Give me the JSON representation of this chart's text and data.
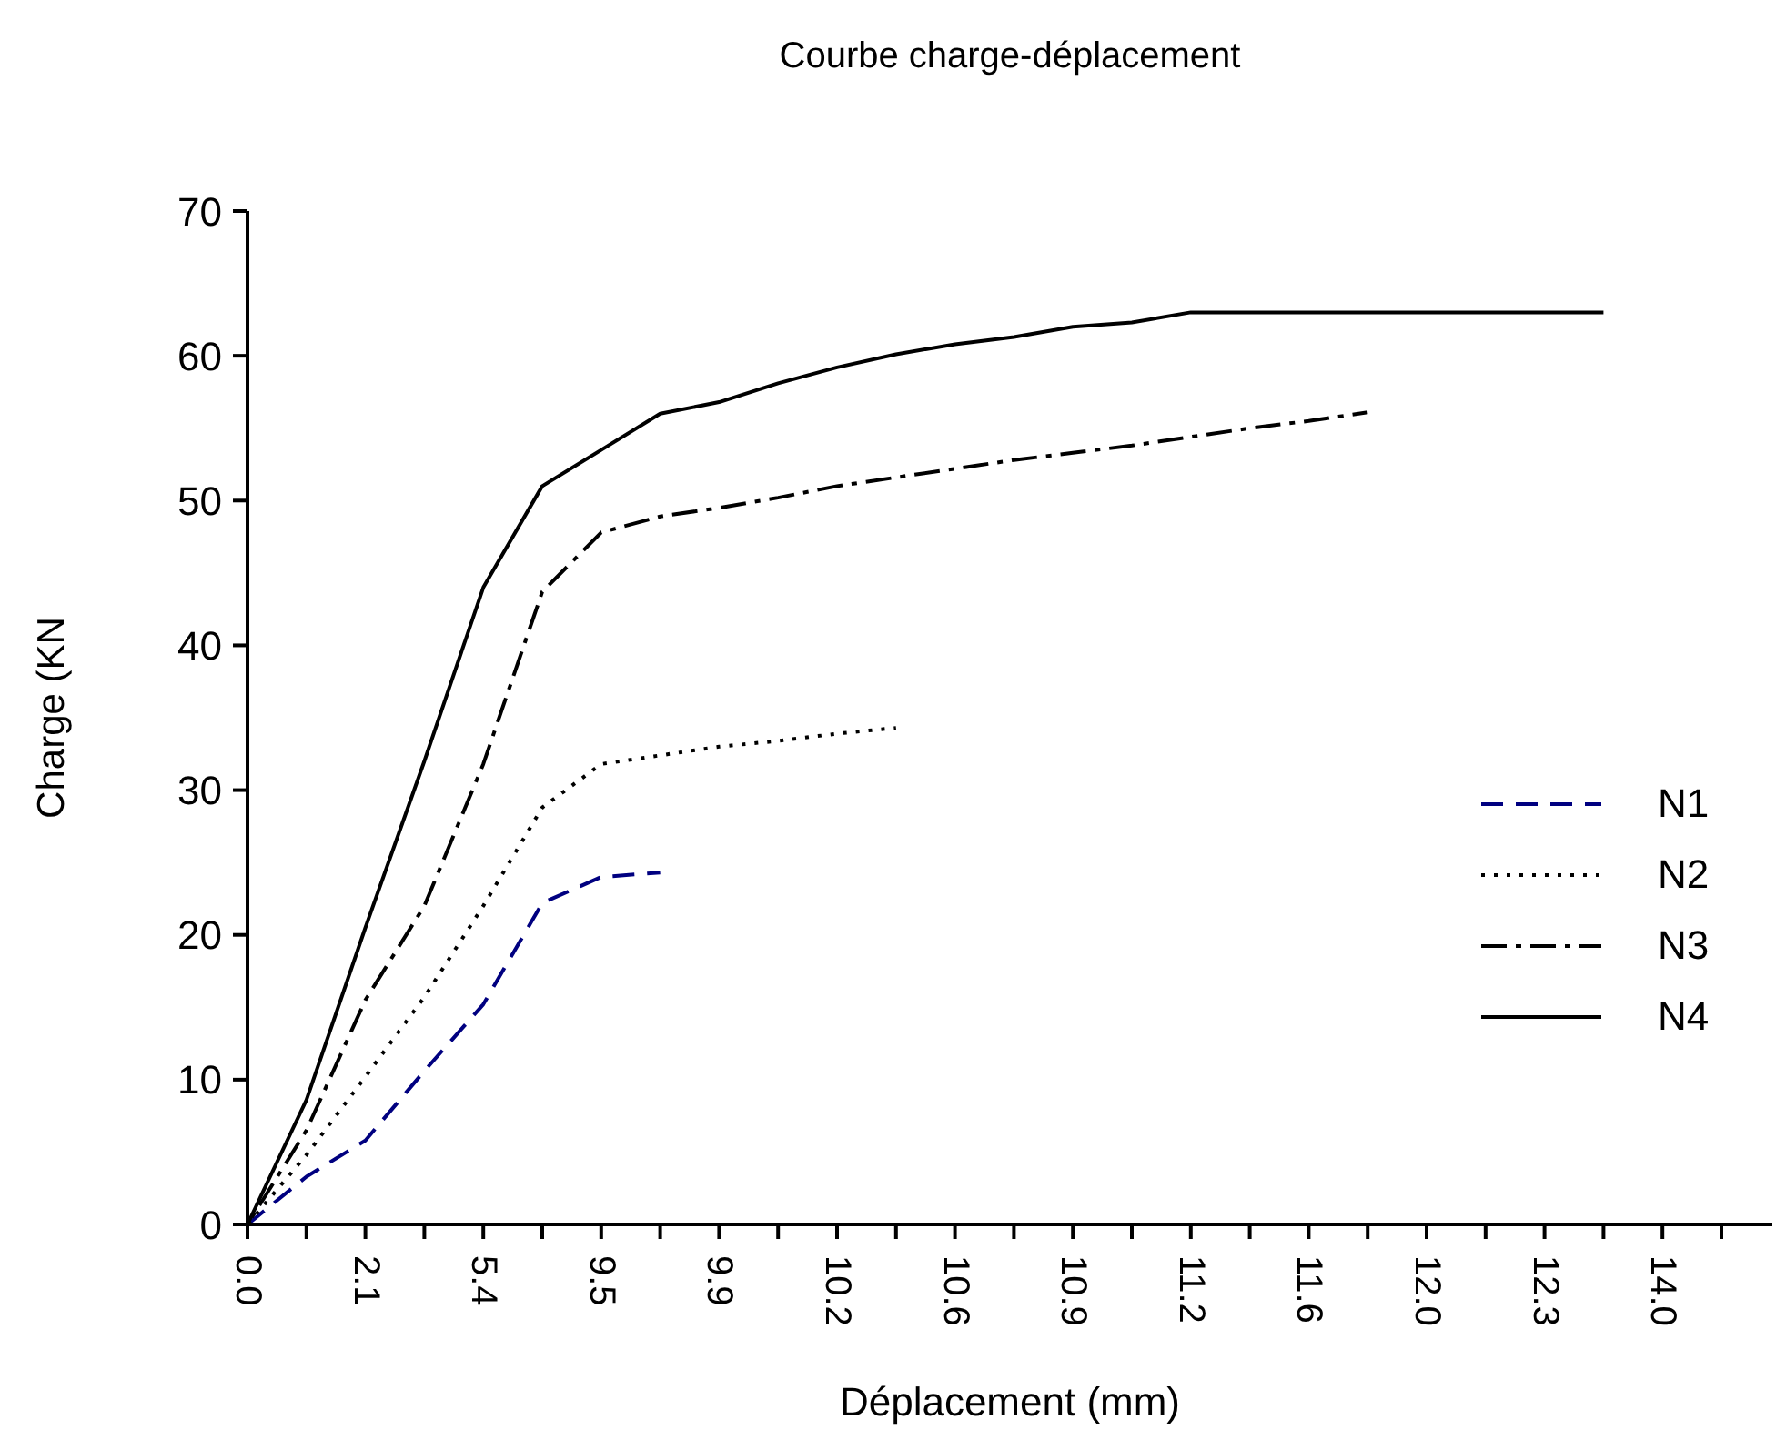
{
  "chart_data": {
    "type": "line",
    "title": "Courbe charge-déplacement",
    "xlabel": "Déplacement (mm)",
    "ylabel": "Charge (KN",
    "categories": [
      "0.0",
      null,
      "2.1",
      null,
      "5.4",
      null,
      "9.5",
      null,
      "9.9",
      null,
      "10.2",
      null,
      "10.6",
      null,
      "10.9",
      null,
      "11.2",
      null,
      "11.6",
      null,
      "12.0",
      null,
      "12.3",
      null,
      "14.0",
      null
    ],
    "series": [
      {
        "name": "N1",
        "color": "#000080",
        "line_style": "dashed",
        "values": [
          0,
          3.3,
          5.8,
          10.6,
          15.2,
          22.2,
          24.0,
          24.3,
          null,
          null,
          null,
          null,
          null,
          null,
          null,
          null,
          null,
          null,
          null,
          null,
          null,
          null,
          null,
          null,
          null,
          null
        ]
      },
      {
        "name": "N2",
        "color": "#000000",
        "line_style": "dotted",
        "values": [
          0,
          4.8,
          10.2,
          15.7,
          22,
          28.8,
          31.8,
          32.4,
          33.0,
          33.4,
          33.9,
          34.3,
          null,
          null,
          null,
          null,
          null,
          null,
          null,
          null,
          null,
          null,
          null,
          null,
          null,
          null
        ]
      },
      {
        "name": "N3",
        "color": "#000000",
        "line_style": "dashdot",
        "values": [
          0,
          6.5,
          15.5,
          22,
          31.8,
          43.7,
          47.8,
          48.9,
          49.5,
          50.2,
          51.0,
          51.6,
          52.2,
          52.8,
          53.3,
          53.8,
          54.4,
          55.0,
          55.5,
          56.1,
          null,
          null,
          null,
          null,
          null,
          null
        ]
      },
      {
        "name": "N4",
        "color": "#000000",
        "line_style": "solid",
        "values": [
          0,
          8.6,
          20.5,
          32,
          44,
          51,
          53.5,
          56,
          56.8,
          58.1,
          59.2,
          60.1,
          60.8,
          61.3,
          62,
          62.3,
          63,
          63,
          63,
          63,
          63,
          63,
          63,
          63,
          null,
          null
        ]
      }
    ],
    "ylim": [
      0,
      70
    ],
    "yticks": [
      0,
      10,
      20,
      30,
      40,
      50,
      60,
      70
    ],
    "legend": "right",
    "marker": "none"
  }
}
